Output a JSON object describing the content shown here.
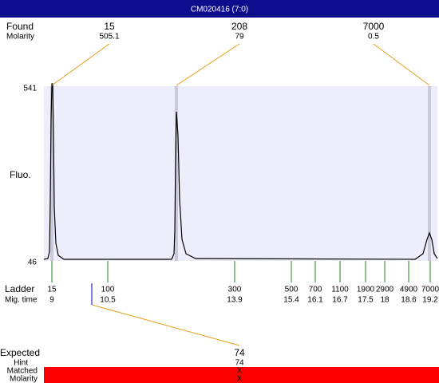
{
  "header": {
    "title": "CM020416 (7:0)"
  },
  "found": {
    "label": "Found",
    "molarity_label": "Molarity",
    "peaks": [
      {
        "size": 15,
        "molarity": 505.1
      },
      {
        "size": 208,
        "molarity": 79
      },
      {
        "size": 7000,
        "molarity": 0.5
      }
    ]
  },
  "axis": {
    "y_label": "Fluo.",
    "y_max": 541,
    "y_min": 46
  },
  "ladder": {
    "label": "Ladder",
    "time_label": "Mig. time",
    "sizes": [
      15,
      100,
      300,
      500,
      700,
      1100,
      1900,
      2900,
      4900,
      7000
    ],
    "times": [
      9,
      10.5,
      13.9,
      15.4,
      16.1,
      16.7,
      17.5,
      18,
      18.6,
      19.2
    ]
  },
  "expected": {
    "label": "Expected",
    "value": 74,
    "hint_label": "Hint",
    "hint": 74,
    "matched_label": "Matched",
    "matched": "X",
    "molarity_label": "Molarity",
    "molarity": "X"
  }
}
